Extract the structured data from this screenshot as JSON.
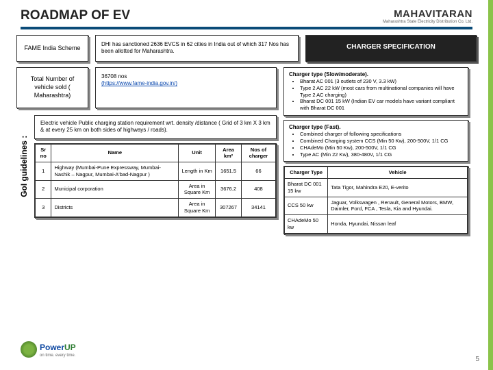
{
  "title": "ROADMAP OF EV",
  "logo": {
    "main": "MAHAVITARAN",
    "sub": "Maharashtra State Electricity Distribution Co. Ltd."
  },
  "fame": {
    "label": "FAME India Scheme",
    "desc": "DHI has sanctioned 2636 EVCS in 62 cities in India out of which 317 Nos has been allotted for Maharashtra."
  },
  "specHeader": "CHARGER SPECIFICATION",
  "total": {
    "label": "Total Number of vehicle sold ( Maharashtra)",
    "value": "36708 nos",
    "linkText": "(https://www.fame-india.gov.in/)"
  },
  "slow": {
    "title": "Charger type (Slow/moderate).",
    "items": [
      "Bharat AC 001 (3 outlets of 230 V, 3.3 kW)",
      "Type 2 AC 22 kW (most cars from multinational companies will have Type 2 AC charging)",
      "Bharat DC 001 15 kW (Indian EV car models have variant compliant with Bharat DC 001"
    ]
  },
  "fast": {
    "title": "Charger type (Fast).",
    "items": [
      "Combined charger of following specifications",
      "Combined Charging system CCS (Min 50 Kw), 200-500V, 1/1 CG",
      "CHAdeMo (Min 50 Kw), 200-500V, 1/1 CG",
      "Type AC (Min 22 Kw), 380-480V, 1/1 CG"
    ]
  },
  "goiLabel": "GoI guidelines :",
  "req": "Electric vehicle Public charging station requirement wrt. density /distance ( Grid of 3 km X 3 km & at every 25 km on both sides of highways / roads).",
  "leftTable": {
    "headers": [
      "Sr no",
      "Name",
      "Unit",
      "Area km²",
      "Nos of charger"
    ],
    "rows": [
      [
        "1",
        "Highway (Mumbai-Pune Expressway, Mumbai-Nashik – Nagpur, Mumbai-A'bad-Nagpur )",
        "Length in Km",
        "1651.5",
        "66"
      ],
      [
        "2",
        "Municipal corporation",
        "Area in Square Km",
        "3676.2",
        "408"
      ],
      [
        "3",
        "Districts",
        "Area in Square Km",
        "307267",
        "34141"
      ]
    ]
  },
  "rightTable": {
    "headers": [
      "Charger Type",
      "Vehicle"
    ],
    "rows": [
      [
        "Bharat DC 001 15 kw",
        "Tata Tigor, Mahindra E20, E-verito"
      ],
      [
        "CCS 50 kw",
        "Jaguar, Volkswagen , Renault, General Motors, BMW, Daimler, Ford, FCA , Tesla, Kia and Hyundai."
      ],
      [
        "CHAdeMo 50 kw",
        "Honda, Hyundai, Nissan leaf"
      ]
    ]
  },
  "powerup": {
    "p": "Power",
    "up": "UP",
    "sub": "on time. every time."
  },
  "pageNum": "5"
}
